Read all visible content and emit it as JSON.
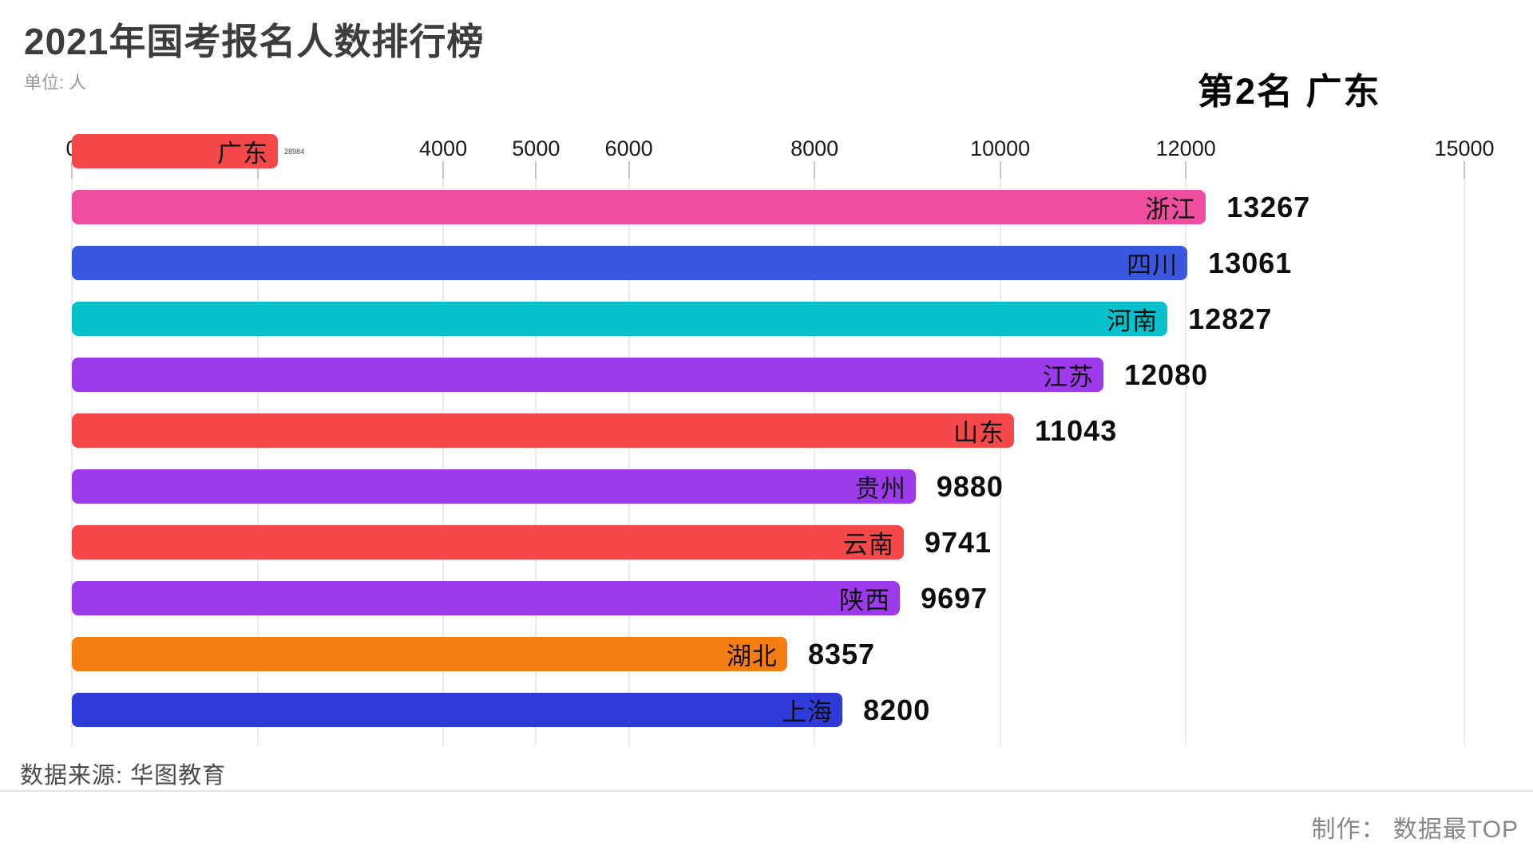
{
  "header": {
    "title": "2021年国考报名人数排行榜",
    "unit": "单位: 人",
    "rank_badge": "第2名 广东"
  },
  "footer": {
    "source": "数据来源: 华图教育",
    "credit": "制作： 数据最TOP"
  },
  "chart_data": {
    "type": "bar",
    "orientation": "horizontal",
    "title": "2021年国考报名人数排行榜",
    "unit": "人",
    "annotation": "第2名 广东",
    "xlim": [
      0,
      15000
    ],
    "grid": true,
    "ticks": [
      {
        "value": 0,
        "label": "0"
      },
      {
        "value": 2000,
        "label": ""
      },
      {
        "value": 4000,
        "label": "4000"
      },
      {
        "value": 5000,
        "label": "5000"
      },
      {
        "value": 6000,
        "label": "6000"
      },
      {
        "value": 8000,
        "label": "8000"
      },
      {
        "value": 10000,
        "label": "10000"
      },
      {
        "value": 12000,
        "label": "12000"
      },
      {
        "value": 15000,
        "label": "15000"
      }
    ],
    "bars": [
      {
        "name": "广东",
        "value": 28984,
        "display_value": 2220,
        "color": "#F4484A",
        "entering": true
      },
      {
        "name": "浙江",
        "value": 13267,
        "display_value": 12215,
        "color": "#EF4D9D"
      },
      {
        "name": "四川",
        "value": 13061,
        "display_value": 12017,
        "color": "#3A57E2"
      },
      {
        "name": "河南",
        "value": 12827,
        "display_value": 11803,
        "color": "#07C2CC"
      },
      {
        "name": "江苏",
        "value": 12080,
        "display_value": 11113,
        "color": "#9D3BEC"
      },
      {
        "name": "山东",
        "value": 11043,
        "display_value": 10150,
        "color": "#F4484A"
      },
      {
        "name": "贵州",
        "value": 9880,
        "display_value": 9090,
        "color": "#9D3BEC"
      },
      {
        "name": "云南",
        "value": 9741,
        "display_value": 8962,
        "color": "#F4484A"
      },
      {
        "name": "陕西",
        "value": 9697,
        "display_value": 8920,
        "color": "#9D3BEC"
      },
      {
        "name": "湖北",
        "value": 8357,
        "display_value": 7706,
        "color": "#F67D12"
      },
      {
        "name": "上海",
        "value": 8200,
        "display_value": 8301,
        "color": "#2E3BD8"
      }
    ]
  }
}
